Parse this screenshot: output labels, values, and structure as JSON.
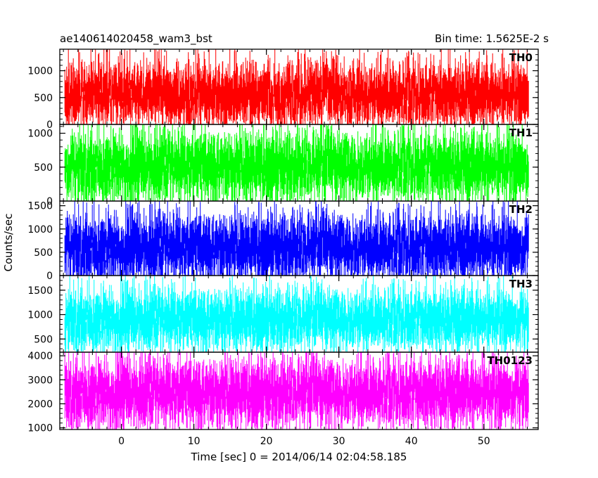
{
  "chart_data": {
    "type": "line",
    "title": "ae140614020458_wam3_bst",
    "subtitle": "Bin time: 1.5625E-2 s",
    "xlabel": "Time [sec] 0 = 2014/06/14 02:04:58.185",
    "ylabel": "Counts/sec",
    "xlim": [
      -8.5,
      57.5
    ],
    "data_xlim": [
      -7.8,
      56.2
    ],
    "bin_time_s": 0.015625,
    "x_ticks": [
      0,
      10,
      20,
      30,
      40,
      50
    ],
    "grid": false,
    "panels": [
      {
        "name": "TH0",
        "color": "#ff0000",
        "ylim": [
          0,
          1400
        ],
        "y_ticks": [
          0,
          500,
          1000
        ],
        "mean": 550,
        "low": 60,
        "high": 1400
      },
      {
        "name": "TH1",
        "color": "#00ff00",
        "ylim": [
          0,
          1130
        ],
        "y_ticks": [
          0,
          500,
          1000
        ],
        "mean": 510,
        "low": 0,
        "high": 1130
      },
      {
        "name": "TH2",
        "color": "#0000ff",
        "ylim": [
          0,
          1600
        ],
        "y_ticks": [
          0,
          500,
          1000,
          1500
        ],
        "mean": 600,
        "low": 0,
        "high": 1600
      },
      {
        "name": "TH3",
        "color": "#00ffff",
        "ylim": [
          230,
          1800
        ],
        "y_ticks": [
          500,
          1000,
          1500
        ],
        "mean": 900,
        "low": 380,
        "high": 1780
      },
      {
        "name": "TH0123",
        "color": "#ff00ff",
        "ylim": [
          930,
          4150
        ],
        "y_ticks": [
          1000,
          2000,
          3000,
          4000
        ],
        "mean": 2450,
        "low": 1000,
        "high": 4150
      }
    ]
  }
}
